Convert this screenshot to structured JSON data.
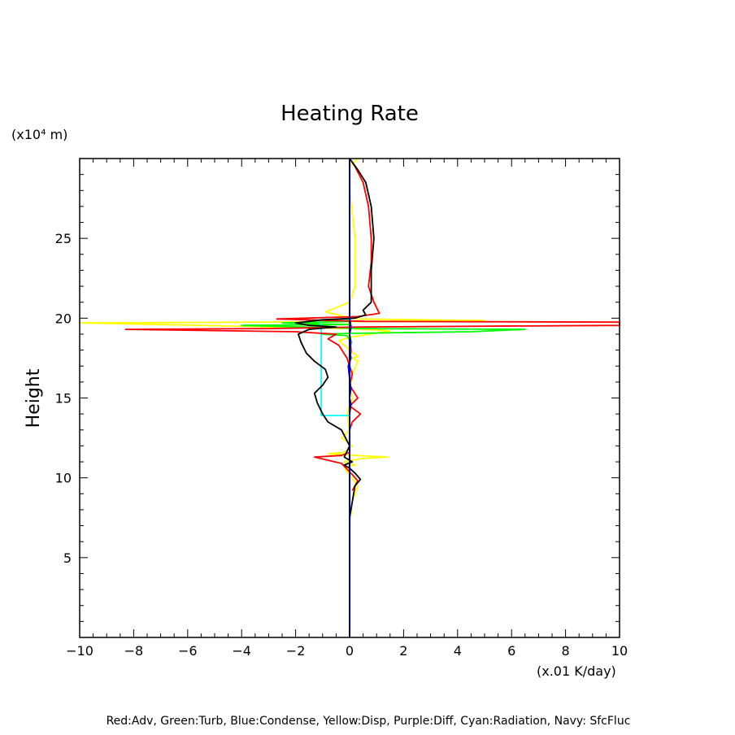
{
  "chart_data": {
    "type": "line",
    "title": "Heating Rate",
    "xlabel": "(x.01 K/day)",
    "ylabel": "Height",
    "yunit": "(x10⁴ m)",
    "xlim": [
      -10,
      10
    ],
    "ylim": [
      0,
      30
    ],
    "xticks": [
      -10,
      -8,
      -6,
      -4,
      -2,
      0,
      2,
      4,
      6,
      8,
      10
    ],
    "yticks": [
      5,
      10,
      15,
      20,
      25
    ],
    "grid": false,
    "legend_text": "Red:Adv, Green:Turb, Blue:Condense, Yellow:Disp, Purple:Diff, Cyan:Radiation, Navy: SfcFluc",
    "series": [
      {
        "name": "SfcFluc",
        "color": "#000080",
        "points": [
          [
            0,
            0
          ],
          [
            0,
            30
          ]
        ]
      },
      {
        "name": "Condense",
        "color": "#0000ff",
        "points": [
          [
            0,
            14.0
          ],
          [
            0.05,
            14.6
          ],
          [
            0.0,
            15.0
          ],
          [
            0.05,
            15.6
          ],
          [
            0.0,
            16.2
          ],
          [
            -0.05,
            17.0
          ],
          [
            0.05,
            17.5
          ],
          [
            0.0,
            18.0
          ],
          [
            0.05,
            18.5
          ],
          [
            0.0,
            19.0
          ],
          [
            0.05,
            19.4
          ],
          [
            0.0,
            20.0
          ]
        ]
      },
      {
        "name": "Radiation",
        "color": "#00ffff",
        "points": [
          [
            0,
            13.9
          ],
          [
            -1.05,
            13.9
          ],
          [
            -1.05,
            19.9
          ],
          [
            0,
            19.9
          ]
        ]
      },
      {
        "name": "Turb",
        "color": "#00ff00",
        "points": [
          [
            0,
            17.5
          ],
          [
            0.05,
            18.5
          ],
          [
            -0.1,
            18.9
          ],
          [
            -1.0,
            19.0
          ],
          [
            0.0,
            19.05
          ],
          [
            4.5,
            19.15
          ],
          [
            6.5,
            19.3
          ],
          [
            0.5,
            19.35
          ],
          [
            -3.0,
            19.5
          ],
          [
            -4.0,
            19.55
          ],
          [
            0.0,
            19.6
          ],
          [
            -2.5,
            19.7
          ],
          [
            0.0,
            19.8
          ],
          [
            0.0,
            30
          ]
        ]
      },
      {
        "name": "Disp",
        "color": "#ffff00",
        "points": [
          [
            0,
            7.0
          ],
          [
            0.1,
            8.5
          ],
          [
            0.3,
            9.5
          ],
          [
            0.0,
            10.2
          ],
          [
            -0.2,
            10.6
          ],
          [
            0.2,
            10.8
          ],
          [
            -0.2,
            11.0
          ],
          [
            0.4,
            11.2
          ],
          [
            1.4,
            11.3
          ],
          [
            0.2,
            11.4
          ],
          [
            -0.8,
            11.5
          ],
          [
            -0.2,
            11.6
          ],
          [
            0.1,
            12.0
          ],
          [
            -0.3,
            12.5
          ],
          [
            0.0,
            13.0
          ],
          [
            -0.1,
            14.0
          ],
          [
            0.1,
            15.0
          ],
          [
            0.0,
            15.5
          ],
          [
            0.1,
            16.5
          ],
          [
            0.3,
            17.3
          ],
          [
            0.1,
            17.5
          ],
          [
            0.3,
            17.6
          ],
          [
            0.0,
            18.0
          ],
          [
            -0.4,
            18.6
          ],
          [
            0.0,
            18.8
          ],
          [
            1.5,
            19.2
          ],
          [
            0.0,
            19.35
          ],
          [
            -7.0,
            19.6
          ],
          [
            -10.0,
            19.7
          ],
          [
            -3.0,
            19.75
          ],
          [
            5.0,
            19.85
          ],
          [
            0.3,
            19.95
          ],
          [
            -0.2,
            20.1
          ],
          [
            -0.9,
            20.4
          ],
          [
            0.0,
            21.0
          ],
          [
            0.2,
            22.0
          ],
          [
            0.2,
            25.0
          ],
          [
            0.0,
            28.0
          ],
          [
            0.0,
            29.5
          ],
          [
            0.3,
            30.0
          ]
        ]
      },
      {
        "name": "Adv",
        "color": "#ff0000",
        "points": [
          [
            0.1,
            9.2
          ],
          [
            0.3,
            9.8
          ],
          [
            0.1,
            10.2
          ],
          [
            -0.3,
            10.9
          ],
          [
            -1.3,
            11.3
          ],
          [
            -0.3,
            11.4
          ],
          [
            0.0,
            11.6
          ],
          [
            0.0,
            13.0
          ],
          [
            0.1,
            13.5
          ],
          [
            0.4,
            14.0
          ],
          [
            0.0,
            14.5
          ],
          [
            0.3,
            15.0
          ],
          [
            0.0,
            15.8
          ],
          [
            0.1,
            16.5
          ],
          [
            -0.1,
            17.5
          ],
          [
            -0.4,
            18.3
          ],
          [
            -0.8,
            18.7
          ],
          [
            -0.5,
            19.0
          ],
          [
            -2.0,
            19.15
          ],
          [
            -8.3,
            19.3
          ],
          [
            -3.0,
            19.35
          ],
          [
            0.5,
            19.45
          ],
          [
            10.0,
            19.55
          ],
          [
            10.0,
            19.75
          ],
          [
            0.6,
            19.8
          ],
          [
            -2.7,
            19.95
          ],
          [
            0.3,
            20.1
          ],
          [
            1.1,
            20.3
          ],
          [
            0.9,
            21.0
          ],
          [
            0.7,
            22.0
          ],
          [
            0.8,
            23.5
          ],
          [
            0.8,
            25.0
          ],
          [
            0.7,
            27.0
          ],
          [
            0.5,
            28.5
          ],
          [
            0.2,
            29.5
          ],
          [
            0.0,
            30.0
          ]
        ]
      },
      {
        "name": "Diff",
        "color": "#800080",
        "points": [
          [
            0,
            17.0
          ],
          [
            0.05,
            18.0
          ],
          [
            0.0,
            19.0
          ],
          [
            0.05,
            19.5
          ],
          [
            0.0,
            20.0
          ]
        ]
      },
      {
        "name": "",
        "color": "#000000",
        "points": [
          [
            0.0,
            7.5
          ],
          [
            0.2,
            9.5
          ],
          [
            0.4,
            9.9
          ],
          [
            0.2,
            10.3
          ],
          [
            0.0,
            10.6
          ],
          [
            -0.2,
            10.8
          ],
          [
            0.1,
            11.0
          ],
          [
            -0.2,
            11.3
          ],
          [
            0.0,
            12.0
          ],
          [
            -0.3,
            13.0
          ],
          [
            -0.8,
            13.5
          ],
          [
            -1.0,
            14.0
          ],
          [
            -1.2,
            14.7
          ],
          [
            -1.3,
            15.3
          ],
          [
            -1.0,
            15.8
          ],
          [
            -0.8,
            16.3
          ],
          [
            -0.9,
            16.8
          ],
          [
            -1.3,
            17.3
          ],
          [
            -1.6,
            17.8
          ],
          [
            -1.8,
            18.5
          ],
          [
            -1.9,
            19.0
          ],
          [
            -1.5,
            19.3
          ],
          [
            -0.5,
            19.45
          ],
          [
            -1.5,
            19.55
          ],
          [
            -2.0,
            19.7
          ],
          [
            -1.0,
            19.9
          ],
          [
            0.2,
            20.0
          ],
          [
            0.6,
            20.2
          ],
          [
            0.5,
            20.5
          ],
          [
            0.8,
            21.0
          ],
          [
            0.8,
            23.0
          ],
          [
            0.9,
            25.0
          ],
          [
            0.8,
            27.0
          ],
          [
            0.6,
            28.5
          ],
          [
            0.3,
            29.3
          ],
          [
            0.0,
            30.0
          ]
        ]
      }
    ]
  }
}
